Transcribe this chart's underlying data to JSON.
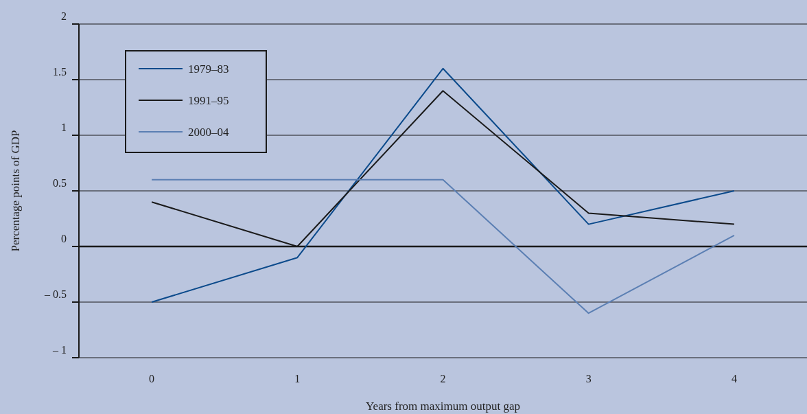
{
  "chart_data": {
    "type": "line",
    "xlabel": "Years from maximum output gap",
    "ylabel": "Percentage points of GDP",
    "categories": [
      "0",
      "1",
      "2",
      "3",
      "4"
    ],
    "series": [
      {
        "name": "1979–83",
        "color": "#0b4a8b",
        "values": [
          -0.5,
          -0.1,
          1.6,
          0.2,
          0.5
        ]
      },
      {
        "name": "1991–95",
        "color": "#1a1a1a",
        "values": [
          0.4,
          0,
          1.4,
          0.3,
          0.2
        ]
      },
      {
        "name": "2000–04",
        "color": "#5b7fb3",
        "values": [
          0.6,
          0.6,
          0.6,
          -0.6,
          0.1
        ]
      }
    ],
    "ylim": [
      -1,
      2
    ],
    "yticks": [
      {
        "value": -1,
        "label": "– 1"
      },
      {
        "value": -0.5,
        "label": "– 0.5"
      },
      0,
      0.5,
      1,
      1.5,
      2
    ],
    "grid": "y",
    "legend": "top left",
    "marker": "none",
    "line_style": "solid"
  }
}
